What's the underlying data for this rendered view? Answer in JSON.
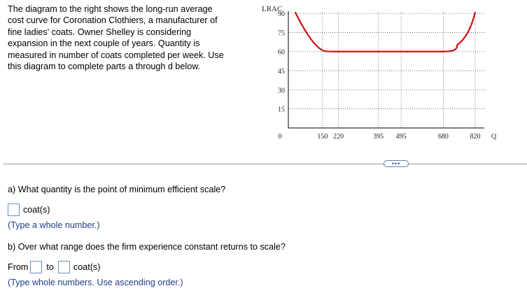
{
  "intro": {
    "lines": [
      "The diagram to the right shows the long-run average",
      "cost curve for Coronation Clothiers, a manufacturer of",
      "fine ladies' coats. Owner Shelley is considering",
      "expansion in the next couple of years. Quantity is",
      "measured in number of coats completed per week. Use",
      "this diagram to complete parts a through d below."
    ]
  },
  "chart_data": {
    "type": "line",
    "ylabel": "LRAC",
    "xlabel": "Q",
    "origin_label": "0",
    "y_ticks": [
      90,
      75,
      60,
      45,
      30,
      15
    ],
    "x_ticks": [
      150,
      220,
      395,
      495,
      680,
      820
    ],
    "xlim": [
      0,
      860
    ],
    "ylim": [
      0,
      95
    ],
    "grid": "dotted",
    "colors": {
      "curve": "#cc1111",
      "grid": "#555555"
    },
    "series": [
      {
        "points": [
          [
            30,
            91
          ],
          [
            90,
            74
          ],
          [
            150,
            62
          ],
          [
            220,
            60
          ],
          [
            395,
            60
          ],
          [
            495,
            60
          ],
          [
            680,
            60
          ],
          [
            740,
            65
          ],
          [
            790,
            78
          ],
          [
            820,
            91
          ]
        ]
      }
    ]
  },
  "more_button": {
    "label": "•••"
  },
  "part_a": {
    "question": "a) What quantity is the point of minimum efficient scale?",
    "unit": "coat(s)",
    "hint": "(Type a whole number.)"
  },
  "part_b": {
    "question": "b) Over what range does the firm experience constant returns to scale?",
    "from_label": "From",
    "to_label": "to",
    "unit": "coat(s)",
    "hint": "(Type whole numbers. Use ascending order.)"
  }
}
